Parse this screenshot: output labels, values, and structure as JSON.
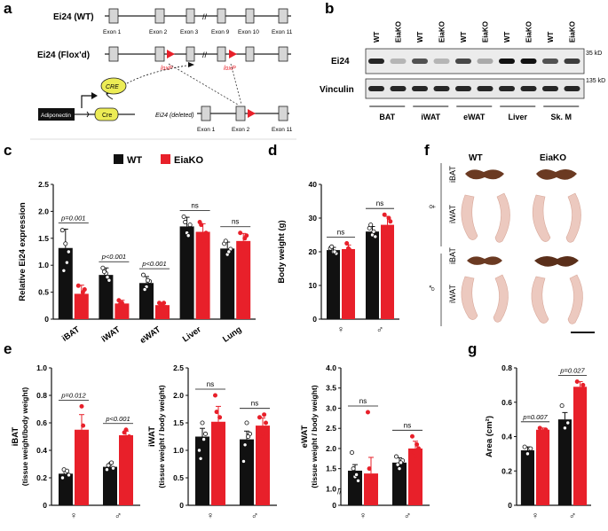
{
  "panel_labels": [
    "a",
    "b",
    "c",
    "d",
    "e",
    "f",
    "g"
  ],
  "a": {
    "wt_label": "Ei24 (WT)",
    "flox_label": "Ei24 (Flox'd)",
    "wt_exons": [
      "Exon 1",
      "Exon 2",
      "Exon 3",
      "Exon 9",
      "Exon 10",
      "Exon 11"
    ],
    "loxp": "loxP",
    "cre": "CRE",
    "promoter": "Adiponectin",
    "cre_gene": "Cre",
    "deleted_label": "Ei24 (deleted)",
    "del_exons": [
      "Exon 1",
      "Exon 2",
      "Exon 11"
    ],
    "colors": {
      "loxp": "#e8202a",
      "cre": "#ecec55",
      "promoter": "#111111"
    }
  },
  "b": {
    "lanes": [
      "WT",
      "EiaKO",
      "WT",
      "EiaKO",
      "WT",
      "EiaKO",
      "WT",
      "EiaKO",
      "WT",
      "EiaKO"
    ],
    "tissues": [
      "BAT",
      "iWAT",
      "eWAT",
      "Liver",
      "Sk. M"
    ],
    "rows": [
      "Ei24",
      "Vinculin"
    ],
    "markers": [
      "35 kD",
      "135 kD"
    ]
  },
  "legend": {
    "wt": "WT",
    "ko": "EiaKO"
  },
  "colors": {
    "wt": "#111111",
    "ko": "#e8202a"
  },
  "chart_data": [
    {
      "id": "c",
      "type": "bar",
      "ylabel": "Relative Ei24 expression",
      "ylim": [
        0,
        2.5
      ],
      "yticks": [
        0,
        0.5,
        1.0,
        1.5,
        2.0,
        2.5
      ],
      "categories": [
        "iBAT",
        "iWAT",
        "eWAT",
        "Liver",
        "Lung"
      ],
      "series": [
        {
          "name": "WT",
          "values": [
            1.32,
            0.82,
            0.67,
            1.72,
            1.31
          ],
          "errors": [
            0.35,
            0.13,
            0.12,
            0.17,
            0.12
          ],
          "points": [
            [
              1.65,
              1.4,
              1.25,
              0.9,
              1.05
            ],
            [
              0.95,
              0.85,
              0.72,
              0.88,
              0.78
            ],
            [
              0.82,
              0.6,
              0.7,
              0.55,
              0.72
            ],
            [
              1.9,
              1.6,
              1.75,
              1.8,
              1.55
            ],
            [
              1.4,
              1.2,
              1.3,
              1.45,
              1.25
            ]
          ]
        },
        {
          "name": "EiaKO",
          "values": [
            0.47,
            0.29,
            0.26,
            1.62,
            1.45
          ],
          "errors": [
            0.16,
            0.06,
            0.04,
            0.15,
            0.14
          ],
          "points": [
            [
              0.62,
              0.35,
              0.55,
              0.2,
              0.5
            ],
            [
              0.35,
              0.3,
              0.2,
              0.28,
              0.25
            ],
            [
              0.3,
              0.25,
              0.22,
              0.28,
              0.3
            ],
            [
              1.8,
              1.5,
              1.6,
              1.75,
              1.45
            ],
            [
              1.6,
              1.3,
              1.55,
              1.4,
              1.5
            ]
          ]
        }
      ],
      "annotations": [
        "p=0.001",
        "p<0.001",
        "p<0.001",
        "ns",
        "ns"
      ]
    },
    {
      "id": "d",
      "type": "bar",
      "ylabel": "Body weight (g)",
      "ylim": [
        0,
        40
      ],
      "yticks": [
        0,
        10,
        20,
        30,
        40
      ],
      "categories": [
        "♀",
        "♂"
      ],
      "series": [
        {
          "name": "WT",
          "values": [
            20.5,
            26
          ],
          "errors": [
            0.8,
            1.5
          ],
          "points": [
            [
              21,
              20,
              19.5,
              21.5,
              20
            ],
            [
              27,
              25,
              24.5,
              28,
              26
            ]
          ]
        },
        {
          "name": "EiaKO",
          "values": [
            20.8,
            28
          ],
          "errors": [
            1.2,
            2.5
          ],
          "points": [
            [
              20,
              21,
              19.5,
              22.5,
              20.5
            ],
            [
              31,
              24,
              29,
              27,
              30
            ]
          ]
        }
      ],
      "annotations": [
        "ns",
        "ns"
      ]
    },
    {
      "id": "e1",
      "type": "bar",
      "ylabel": "iBAT",
      "ylabel2": "(tissue weight/body weight)",
      "ylim": [
        0,
        1.0
      ],
      "yticks": [
        0,
        0.2,
        0.4,
        0.6,
        0.8,
        1.0
      ],
      "categories": [
        "♀",
        "♂"
      ],
      "series": [
        {
          "name": "WT",
          "values": [
            0.23,
            0.28
          ],
          "errors": [
            0.02,
            0.02
          ],
          "points": [
            [
              0.2,
              0.24,
              0.22,
              0.26,
              0.25
            ],
            [
              0.26,
              0.3,
              0.27,
              0.29,
              0.31
            ]
          ]
        },
        {
          "name": "EiaKO",
          "values": [
            0.55,
            0.51
          ],
          "errors": [
            0.11,
            0.03
          ],
          "points": [
            [
              0.32,
              0.72,
              0.5,
              0.45,
              0.58
            ],
            [
              0.47,
              0.55,
              0.5,
              0.53,
              0.48
            ]
          ]
        }
      ],
      "annotations": [
        "p=0.012",
        "p<0.001"
      ]
    },
    {
      "id": "e2",
      "type": "bar",
      "ylabel": "iWAT",
      "ylabel2": "(tissue weight / body weight)",
      "ylim": [
        0,
        2.5
      ],
      "yticks": [
        0,
        0.5,
        1.0,
        1.5,
        2.0,
        2.5
      ],
      "categories": [
        "♀",
        "♂"
      ],
      "series": [
        {
          "name": "WT",
          "values": [
            1.25,
            1.2
          ],
          "errors": [
            0.15,
            0.15
          ],
          "points": [
            [
              1.0,
              1.5,
              1.3,
              0.85,
              1.2
            ],
            [
              0.8,
              1.5,
              1.3,
              1.1,
              1.25
            ]
          ]
        },
        {
          "name": "EiaKO",
          "values": [
            1.52,
            1.45
          ],
          "errors": [
            0.28,
            0.14
          ],
          "points": [
            [
              2.0,
              0.85,
              1.4,
              1.7,
              1.6
            ],
            [
              1.6,
              1.3,
              1.5,
              1.2,
              1.65
            ]
          ]
        }
      ],
      "annotations": [
        "ns",
        "ns"
      ]
    },
    {
      "id": "e3",
      "type": "bar",
      "ylabel": "eWAT",
      "ylabel2": "(tissue weight / body weight)",
      "ylim": [
        0,
        4.0
      ],
      "yticks": [
        0,
        1.0,
        1.5,
        2.0,
        2.5,
        3.0,
        3.5,
        4.0
      ],
      "break": true,
      "categories": [
        "♀",
        "♂"
      ],
      "series": [
        {
          "name": "WT",
          "values": [
            1.45,
            1.65
          ],
          "errors": [
            0.15,
            0.12
          ],
          "points": [
            [
              1.9,
              1.3,
              1.2,
              1.5,
              1.35
            ],
            [
              1.8,
              1.5,
              1.7,
              1.6,
              1.65
            ]
          ]
        },
        {
          "name": "EiaKO",
          "values": [
            1.38,
            2.0
          ],
          "errors": [
            0.4,
            0.18
          ],
          "points": [
            [
              2.9,
              1.0,
              1.1,
              1.5,
              1.2
            ],
            [
              2.3,
              1.8,
              2.0,
              1.9,
              2.1
            ]
          ]
        }
      ],
      "annotations": [
        "ns",
        "ns"
      ]
    },
    {
      "id": "g",
      "type": "bar",
      "ylabel": "Area (cm²)",
      "ylim": [
        0,
        0.8
      ],
      "yticks": [
        0,
        0.2,
        0.4,
        0.6,
        0.8
      ],
      "categories": [
        "♀",
        "♂"
      ],
      "series": [
        {
          "name": "WT",
          "values": [
            0.32,
            0.5
          ],
          "errors": [
            0.02,
            0.04
          ],
          "points": [
            [
              0.34,
              0.3,
              0.33
            ],
            [
              0.58,
              0.45,
              0.48
            ]
          ]
        },
        {
          "name": "EiaKO",
          "values": [
            0.44,
            0.69
          ],
          "errors": [
            0.01,
            0.03
          ],
          "points": [
            [
              0.45,
              0.43,
              0.44
            ],
            [
              0.72,
              0.66,
              0.7
            ]
          ]
        }
      ],
      "annotations": [
        "p=0.007",
        "p=0.027"
      ]
    }
  ],
  "f": {
    "cols": [
      "WT",
      "EiaKO"
    ],
    "female": "♀",
    "male": "♂",
    "rows": [
      "iBAT",
      "iWAT",
      "iBAT",
      "iWAT"
    ]
  }
}
